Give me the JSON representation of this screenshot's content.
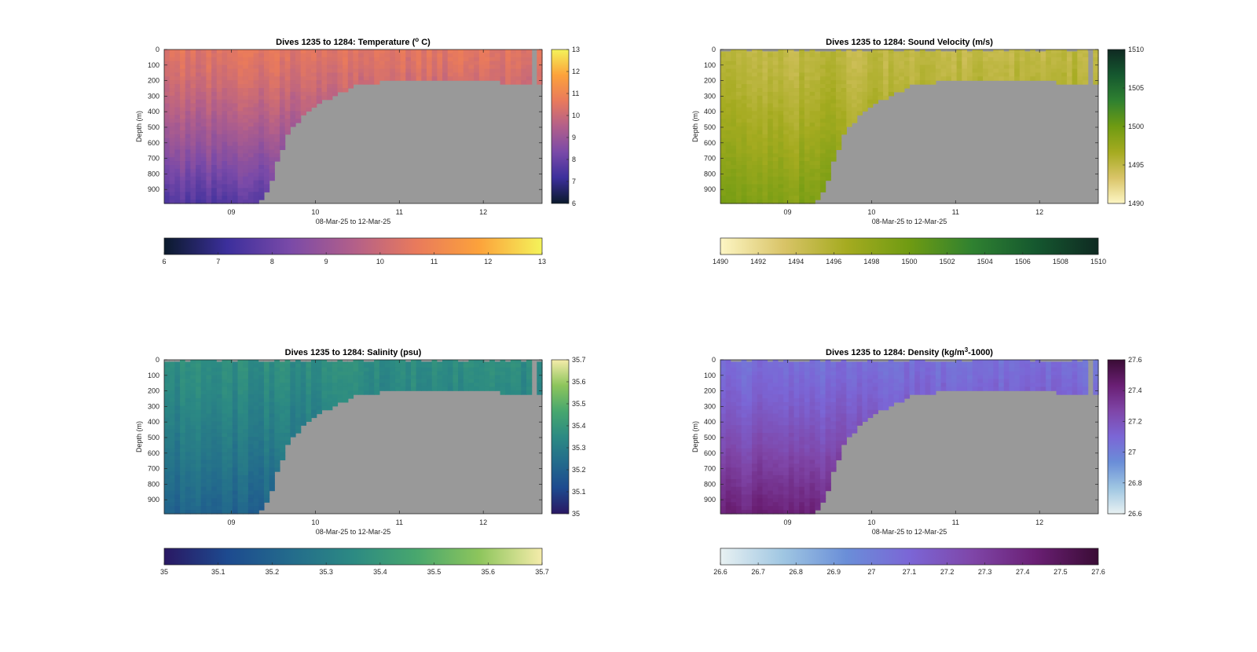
{
  "figure": {
    "background": "#ffffff",
    "nodata_color": "#999999"
  },
  "chart_data": [
    {
      "type": "heatmap",
      "panel": "temperature",
      "title": "Dives 1235 to 1284: Temperature (",
      "title_sup": "o",
      "title_after": " C)",
      "xlabel": "08-Mar-25 to 12-Mar-25",
      "ylabel": "Depth (m)",
      "xlim": [
        8.2,
        12.7
      ],
      "ylim": [
        0,
        990
      ],
      "y_reversed": true,
      "x_ticks": [
        9,
        10,
        11,
        12
      ],
      "x_tick_labels": [
        "09",
        "10",
        "11",
        "12"
      ],
      "y_ticks": [
        0,
        100,
        200,
        300,
        400,
        500,
        600,
        700,
        800,
        900
      ],
      "y_tick_labels": [
        "0",
        "100",
        "200",
        "300",
        "400",
        "500",
        "600",
        "700",
        "800",
        "900"
      ],
      "clim": [
        6,
        13
      ],
      "colormap": [
        "#0b1a2c",
        "#3c2f9c",
        "#7a4aa8",
        "#b25f8a",
        "#e97a5c",
        "#fca23b",
        "#f4f35a"
      ],
      "cbar_right_ticks": [
        13,
        12,
        11,
        10,
        9,
        8,
        7,
        6
      ],
      "cbar_right_labels": [
        "13",
        "12",
        "11",
        "10",
        "9",
        "8",
        "7",
        "6"
      ],
      "cbar_bottom_ticks": [
        6,
        7,
        8,
        9,
        10,
        11,
        12,
        13
      ],
      "cbar_bottom_labels": [
        "6",
        "7",
        "8",
        "9",
        "10",
        "11",
        "12",
        "13"
      ],
      "surface_value": 10.5,
      "deep_value": 7.6,
      "spikes": false,
      "grey_profile": true
    },
    {
      "type": "heatmap",
      "panel": "sound_velocity",
      "title": "Dives 1235 to 1284: Sound Velocity (m/s)",
      "xlabel": "08-Mar-25 to 12-Mar-25",
      "ylabel": "Depth (m)",
      "xlim": [
        8.2,
        12.7
      ],
      "ylim": [
        0,
        990
      ],
      "y_reversed": true,
      "x_ticks": [
        9,
        10,
        11,
        12
      ],
      "x_tick_labels": [
        "09",
        "10",
        "11",
        "12"
      ],
      "y_ticks": [
        0,
        100,
        200,
        300,
        400,
        500,
        600,
        700,
        800,
        900
      ],
      "y_tick_labels": [
        "0",
        "100",
        "200",
        "300",
        "400",
        "500",
        "600",
        "700",
        "800",
        "900"
      ],
      "clim": [
        1490,
        1510
      ],
      "colormap": [
        "#fdf6c4",
        "#d9c468",
        "#a5ab20",
        "#6f9b12",
        "#2f8130",
        "#15582f",
        "#0f2a22"
      ],
      "cbar_right_ticks": [
        1510,
        1505,
        1500,
        1495,
        1490
      ],
      "cbar_right_labels": [
        "1510",
        "1505",
        "1500",
        "1495",
        "1490"
      ],
      "cbar_bottom_ticks": [
        1490,
        1492,
        1494,
        1496,
        1498,
        1500,
        1502,
        1504,
        1506,
        1508,
        1510
      ],
      "cbar_bottom_labels": [
        "1490",
        "1492",
        "1494",
        "1496",
        "1498",
        "1500",
        "1502",
        "1504",
        "1506",
        "1508",
        "1510"
      ],
      "surface_value": 1495,
      "deep_value": 1499,
      "spikes": true,
      "grey_profile": true
    },
    {
      "type": "heatmap",
      "panel": "salinity",
      "title": "Dives 1235 to 1284: Salinity (psu)",
      "xlabel": "08-Mar-25 to 12-Mar-25",
      "ylabel": "Depth (m)",
      "xlim": [
        8.2,
        12.7
      ],
      "ylim": [
        0,
        990
      ],
      "y_reversed": true,
      "x_ticks": [
        9,
        10,
        11,
        12
      ],
      "x_tick_labels": [
        "09",
        "10",
        "11",
        "12"
      ],
      "y_ticks": [
        0,
        100,
        200,
        300,
        400,
        500,
        600,
        700,
        800,
        900
      ],
      "y_tick_labels": [
        "0",
        "100",
        "200",
        "300",
        "400",
        "500",
        "600",
        "700",
        "800",
        "900"
      ],
      "clim": [
        35,
        35.7
      ],
      "colormap": [
        "#2a1863",
        "#1d4a8f",
        "#236b8c",
        "#2c8a83",
        "#48a76e",
        "#8dc55c",
        "#f5ecaa"
      ],
      "cbar_right_ticks": [
        35.7,
        35.6,
        35.5,
        35.4,
        35.3,
        35.2,
        35.1,
        35
      ],
      "cbar_right_labels": [
        "35.7",
        "35.6",
        "35.5",
        "35.4",
        "35.3",
        "35.2",
        "35.1",
        "35"
      ],
      "cbar_bottom_ticks": [
        35,
        35.1,
        35.2,
        35.3,
        35.4,
        35.5,
        35.6,
        35.7
      ],
      "cbar_bottom_labels": [
        "35",
        "35.1",
        "35.2",
        "35.3",
        "35.4",
        "35.5",
        "35.6",
        "35.7"
      ],
      "surface_value": 35.36,
      "deep_value": 35.2,
      "spikes": true,
      "grey_profile": true
    },
    {
      "type": "heatmap",
      "panel": "density",
      "title": "Dives 1235 to 1284: Density (kg/m",
      "title_sup": "3",
      "title_after": "-1000)",
      "xlabel": "08-Mar-25 to 12-Mar-25",
      "ylabel": "Depth (m)",
      "xlim": [
        8.2,
        12.7
      ],
      "ylim": [
        0,
        990
      ],
      "y_reversed": true,
      "x_ticks": [
        9,
        10,
        11,
        12
      ],
      "x_tick_labels": [
        "09",
        "10",
        "11",
        "12"
      ],
      "y_ticks": [
        0,
        100,
        200,
        300,
        400,
        500,
        600,
        700,
        800,
        900
      ],
      "y_tick_labels": [
        "0",
        "100",
        "200",
        "300",
        "400",
        "500",
        "600",
        "700",
        "800",
        "900"
      ],
      "clim": [
        26.6,
        27.6
      ],
      "colormap": [
        "#e8f1f2",
        "#9fc6e2",
        "#6a8ed8",
        "#7b66d6",
        "#7f46a8",
        "#6a1f74",
        "#3a0c35"
      ],
      "cbar_right_ticks": [
        27.6,
        27.4,
        27.2,
        27,
        26.8,
        26.6
      ],
      "cbar_right_labels": [
        "27.6",
        "27.4",
        "27.2",
        "27",
        "26.8",
        "26.6"
      ],
      "cbar_bottom_ticks": [
        26.6,
        26.7,
        26.8,
        26.9,
        27,
        27.1,
        27.2,
        27.3,
        27.4,
        27.5,
        27.6
      ],
      "cbar_bottom_labels": [
        "26.6",
        "26.7",
        "26.8",
        "26.9",
        "27",
        "27.1",
        "27.2",
        "27.3",
        "27.4",
        "27.5",
        "27.6"
      ],
      "surface_value": 27.06,
      "deep_value": 27.42,
      "spikes": true,
      "grey_profile": true
    }
  ]
}
